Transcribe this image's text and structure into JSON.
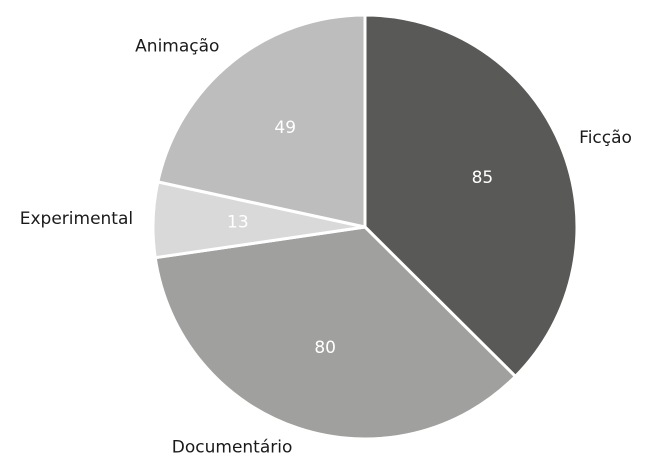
{
  "chart_data": {
    "type": "pie",
    "title": "",
    "start_angle_deg": 0,
    "direction": "clockwise",
    "slices": [
      {
        "label": "Ficção",
        "value": 85,
        "color": "#595957"
      },
      {
        "label": "Documentário",
        "value": 80,
        "color": "#a0a09e"
      },
      {
        "label": "Experimental",
        "value": 13,
        "color": "#d9d9d9"
      },
      {
        "label": "Animação",
        "value": 49,
        "color": "#bdbdbd"
      }
    ],
    "value_label_color": "#ffffff",
    "category_label_color": "#1a1a1a",
    "legend": "none"
  }
}
